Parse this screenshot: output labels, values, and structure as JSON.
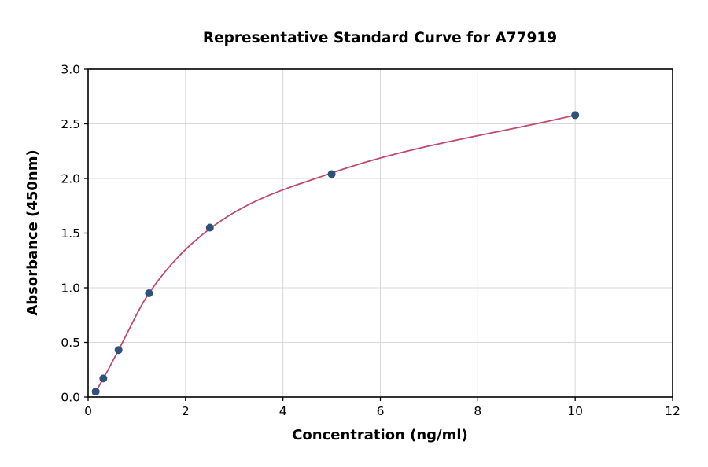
{
  "chart_data": {
    "type": "scatter",
    "title": "Representative Standard Curve for A77919",
    "xlabel": "Concentration (ng/ml)",
    "ylabel": "Absorbance (450nm)",
    "xlim": [
      0,
      12
    ],
    "ylim": [
      0.0,
      3.0
    ],
    "x_ticks": [
      0,
      2,
      4,
      6,
      8,
      10,
      12
    ],
    "x_tick_labels": [
      "0",
      "2",
      "4",
      "6",
      "8",
      "10",
      "12"
    ],
    "y_ticks": [
      0.0,
      0.5,
      1.0,
      1.5,
      2.0,
      2.5,
      3.0
    ],
    "y_tick_labels": [
      "0.0",
      "0.5",
      "1.0",
      "1.5",
      "2.0",
      "2.5",
      "3.0"
    ],
    "grid": true,
    "legend_position": "none",
    "points": {
      "x": [
        0.156,
        0.3125,
        0.625,
        1.25,
        2.5,
        5,
        10
      ],
      "y": [
        0.05,
        0.17,
        0.43,
        0.95,
        1.55,
        2.04,
        2.58
      ],
      "color": "#31517b",
      "radius": 5
    },
    "fit_curve": {
      "x": [
        0.1,
        0.156,
        0.3125,
        0.625,
        1.25,
        2.5,
        5,
        10
      ],
      "y": [
        0.03,
        0.055,
        0.17,
        0.43,
        0.95,
        1.54,
        2.05,
        2.58
      ],
      "color": "#c04a6e",
      "stroke_width": 1.8
    },
    "style": {
      "grid_color": "#d8d8d8",
      "axis_color": "#000000",
      "background": "#ffffff",
      "tick_length": 5
    }
  }
}
